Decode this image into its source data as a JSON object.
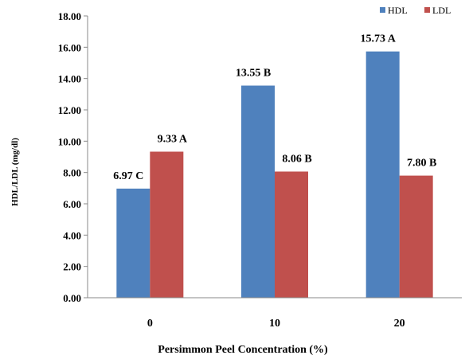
{
  "chart_data": {
    "type": "bar",
    "categories": [
      "0",
      "10",
      "20"
    ],
    "series": [
      {
        "name": "HDL",
        "color": "#4F81BD",
        "values": [
          6.97,
          13.55,
          15.73
        ],
        "labels": [
          "6.97 C",
          "13.55 B",
          "15.73 A"
        ]
      },
      {
        "name": "LDL",
        "color": "#C0504D",
        "values": [
          9.33,
          8.06,
          7.8
        ],
        "labels": [
          "9.33 A",
          "8.06 B",
          "7.80 B"
        ]
      }
    ],
    "xlabel": "Persimmon Peel Concentration (%)",
    "ylabel": "HDL/LDL (mg/dl)",
    "ylim": [
      0,
      18
    ],
    "yticks": [
      "0.00",
      "2.00",
      "4.00",
      "6.00",
      "8.00",
      "10.00",
      "12.00",
      "14.00",
      "16.00",
      "18.00"
    ],
    "grid": false,
    "legend_position": "top-right"
  }
}
